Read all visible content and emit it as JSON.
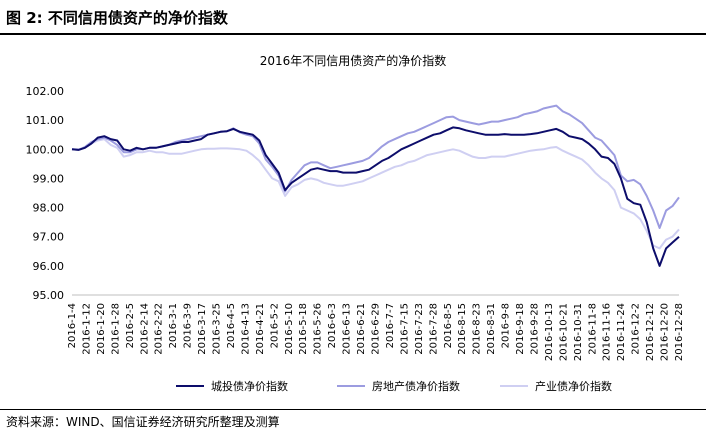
{
  "figure": {
    "label": "图 2:",
    "title": "不同信用债资产的净价指数",
    "source": "资料来源：WIND、国信证券经济研究所整理及测算"
  },
  "chart_data": {
    "type": "line",
    "title": "2016年不同信用债资产的净价指数",
    "xlabel": "",
    "ylabel": "",
    "ylim": [
      95.0,
      102.0
    ],
    "y_ticks": [
      "102.00",
      "101.00",
      "100.00",
      "99.00",
      "98.00",
      "97.00",
      "96.00",
      "95.00"
    ],
    "x_ticks": [
      "2016-1-4",
      "2016-1-12",
      "2016-1-20",
      "2016-1-28",
      "2016-2-5",
      "2016-2-14",
      "2016-2-22",
      "2016-3-1",
      "2016-3-9",
      "2016-3-17",
      "2016-3-25",
      "2016-4-5",
      "2016-4-13",
      "2016-4-21",
      "2016-5-2",
      "2016-5-10",
      "2016-5-18",
      "2016-5-26",
      "2016-6-3",
      "2016-6-13",
      "2016-6-21",
      "2016-6-29",
      "2016-7-7",
      "2016-7-15",
      "2016-7-23",
      "2016-7-28",
      "2016-8-5",
      "2016-8-15",
      "2016-8-23",
      "2016-8-31",
      "2016-9-8",
      "2016-9-18",
      "2016-9-28",
      "2016-10-13",
      "2016-10-21",
      "2016-10-31",
      "2016-11-8",
      "2016-11-16",
      "2016-11-24",
      "2016-12-2",
      "2016-12-12",
      "2016-12-20",
      "2016-12-28"
    ],
    "grid": false,
    "legend_position": "bottom",
    "series": [
      {
        "name": "城投债净价指数",
        "color": "#0d0d6b",
        "values": [
          100.0,
          99.98,
          100.05,
          100.2,
          100.4,
          100.45,
          100.35,
          100.3,
          100.0,
          99.95,
          100.05,
          100.0,
          100.05,
          100.05,
          100.1,
          100.15,
          100.2,
          100.25,
          100.25,
          100.3,
          100.35,
          100.5,
          100.55,
          100.6,
          100.62,
          100.7,
          100.6,
          100.55,
          100.5,
          100.3,
          99.8,
          99.5,
          99.2,
          98.6,
          98.85,
          99.0,
          99.15,
          99.3,
          99.35,
          99.3,
          99.25,
          99.25,
          99.2,
          99.2,
          99.2,
          99.25,
          99.3,
          99.45,
          99.6,
          99.7,
          99.85,
          100.0,
          100.1,
          100.2,
          100.3,
          100.4,
          100.5,
          100.55,
          100.65,
          100.75,
          100.72,
          100.65,
          100.6,
          100.55,
          100.5,
          100.5,
          100.5,
          100.52,
          100.5,
          100.5,
          100.5,
          100.52,
          100.55,
          100.6,
          100.65,
          100.7,
          100.6,
          100.45,
          100.4,
          100.35,
          100.2,
          100.0,
          99.75,
          99.7,
          99.5,
          99.0,
          98.3,
          98.15,
          98.1,
          97.5,
          96.6,
          96.0,
          96.6,
          96.8,
          97.0
        ]
      },
      {
        "name": "房地产债净价指数",
        "color": "#9c9ce0",
        "values": [
          100.0,
          99.98,
          100.08,
          100.25,
          100.35,
          100.4,
          100.3,
          100.15,
          99.9,
          99.9,
          100.0,
          100.0,
          100.05,
          100.05,
          100.1,
          100.15,
          100.25,
          100.3,
          100.35,
          100.4,
          100.45,
          100.5,
          100.55,
          100.6,
          100.62,
          100.72,
          100.58,
          100.5,
          100.45,
          100.2,
          99.65,
          99.4,
          99.1,
          98.55,
          98.95,
          99.2,
          99.45,
          99.55,
          99.55,
          99.45,
          99.35,
          99.4,
          99.45,
          99.5,
          99.55,
          99.6,
          99.7,
          99.9,
          100.1,
          100.25,
          100.35,
          100.45,
          100.55,
          100.6,
          100.7,
          100.8,
          100.9,
          101.0,
          101.1,
          101.12,
          101.0,
          100.95,
          100.9,
          100.85,
          100.9,
          100.95,
          100.95,
          101.0,
          101.05,
          101.1,
          101.2,
          101.25,
          101.3,
          101.4,
          101.45,
          101.5,
          101.3,
          101.2,
          101.05,
          100.9,
          100.65,
          100.4,
          100.3,
          100.05,
          99.8,
          99.1,
          98.9,
          98.95,
          98.8,
          98.4,
          97.9,
          97.3,
          97.9,
          98.05,
          98.35
        ]
      },
      {
        "name": "产业债净价指数",
        "color": "#cfcff2",
        "values": [
          100.0,
          100.0,
          100.05,
          100.2,
          100.3,
          100.35,
          100.15,
          100.05,
          99.75,
          99.8,
          99.9,
          99.9,
          99.95,
          99.9,
          99.9,
          99.85,
          99.85,
          99.85,
          99.9,
          99.95,
          100.0,
          100.02,
          100.02,
          100.03,
          100.03,
          100.02,
          100.0,
          99.95,
          99.8,
          99.6,
          99.3,
          99.0,
          98.9,
          98.4,
          98.7,
          98.8,
          98.95,
          99.0,
          98.95,
          98.85,
          98.8,
          98.75,
          98.75,
          98.8,
          98.85,
          98.9,
          99.0,
          99.1,
          99.2,
          99.3,
          99.4,
          99.45,
          99.55,
          99.6,
          99.7,
          99.8,
          99.85,
          99.9,
          99.95,
          100.0,
          99.95,
          99.85,
          99.75,
          99.7,
          99.7,
          99.75,
          99.75,
          99.75,
          99.8,
          99.85,
          99.9,
          99.95,
          99.98,
          100.0,
          100.05,
          100.08,
          99.95,
          99.85,
          99.75,
          99.65,
          99.45,
          99.2,
          99.0,
          98.85,
          98.6,
          98.0,
          97.9,
          97.8,
          97.6,
          97.2,
          96.7,
          96.6,
          96.9,
          97.0,
          97.25
        ]
      }
    ]
  }
}
